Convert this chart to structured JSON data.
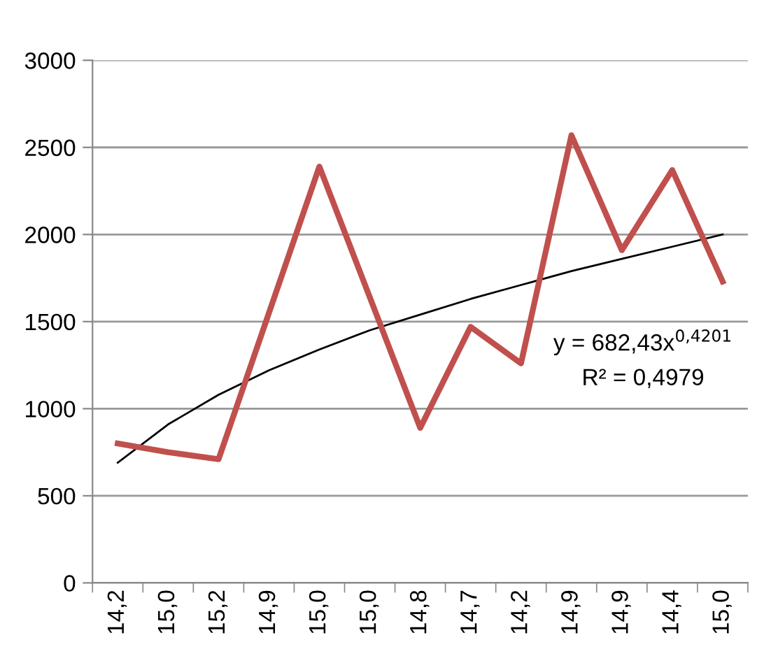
{
  "chart_data": {
    "type": "line",
    "categories": [
      "14,2",
      "15,0",
      "15,2",
      "14,9",
      "15,0",
      "15,0",
      "14,8",
      "14,7",
      "14,2",
      "14,9",
      "14,9",
      "14,4",
      "15,0"
    ],
    "series": [
      {
        "color": "#c0504d",
        "values": [
          800,
          750,
          710,
          1550,
          2390,
          1640,
          890,
          1470,
          1260,
          2570,
          1910,
          2370,
          1730
        ]
      },
      {
        "color": "#000000",
        "values": [
          690,
          910,
          1080,
          1220,
          1340,
          1450,
          1540,
          1630,
          1710,
          1790,
          1860,
          1930,
          2000
        ]
      }
    ],
    "ylim": [
      0,
      3000
    ],
    "yticks": [
      0,
      500,
      1000,
      1500,
      2000,
      2500,
      3000
    ],
    "grid": "y",
    "legend": false,
    "annotations": [
      "y = 682,43x$^{0,4201}$",
      "R² = 0,4979"
    ]
  }
}
